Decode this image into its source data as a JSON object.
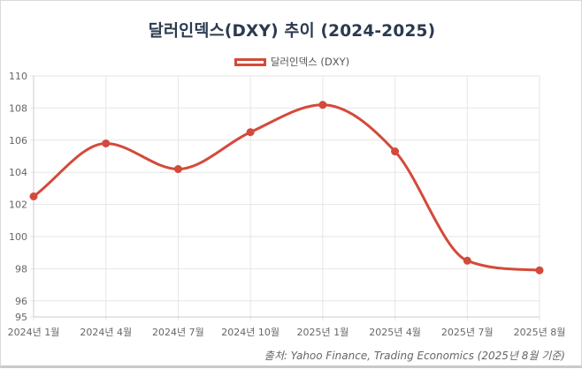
{
  "chart_data": {
    "type": "line",
    "title": "달러인덱스(DXY) 추이 (2024-2025)",
    "categories": [
      "2024년 1월",
      "2024년 4월",
      "2024년 7월",
      "2024년 10월",
      "2025년 1월",
      "2025년 4월",
      "2025년 7월",
      "2025년 8월"
    ],
    "series": [
      {
        "name": "달러인덱스 (DXY)",
        "values": [
          102.5,
          105.8,
          104.2,
          106.5,
          108.2,
          105.3,
          98.5,
          97.9
        ],
        "color": "#d44a3a"
      }
    ],
    "yticks": [
      "95",
      "96",
      "98",
      "100",
      "102",
      "104",
      "106",
      "108",
      "110"
    ],
    "ylim": [
      95,
      110
    ],
    "xlabel": "",
    "ylabel": "",
    "grid": true,
    "legend_position": "top"
  },
  "source": "출처: Yahoo Finance, Trading Economics (2025년 8월 기준)"
}
